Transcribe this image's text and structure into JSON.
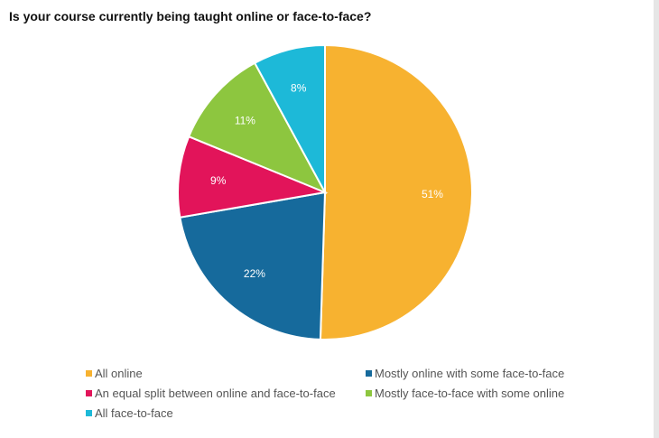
{
  "chart_data": {
    "type": "pie",
    "title": "Is your course currently being taught online or face-to-face?",
    "slices": [
      {
        "label": "All online",
        "value": 51,
        "value_label": "51%",
        "color": "#F7B230"
      },
      {
        "label": "Mostly online with some face-to-face",
        "value": 22,
        "value_label": "22%",
        "color": "#166A9C"
      },
      {
        "label": "An equal split between online and face-to-face",
        "value": 9,
        "value_label": "9%",
        "color": "#E2145A"
      },
      {
        "label": "Mostly face-to-face with some online",
        "value": 11,
        "value_label": "11%",
        "color": "#8DC63F"
      },
      {
        "label": "All face-to-face",
        "value": 8,
        "value_label": "8%",
        "color": "#1DB9D8"
      }
    ],
    "legend_position": "bottom"
  }
}
